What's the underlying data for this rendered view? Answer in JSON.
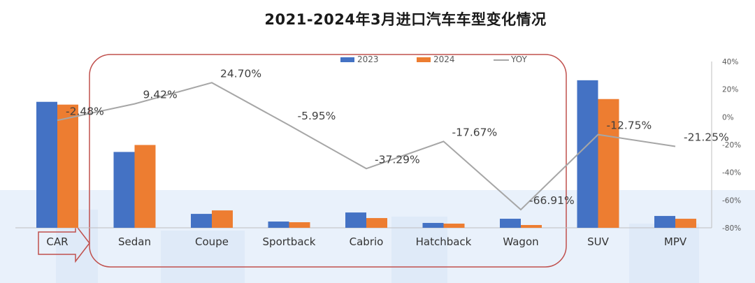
{
  "chart_data": {
    "type": "bar",
    "title": "2021-2024年3月进口汽车车型变化情况",
    "categories": [
      "CAR",
      "Sedan",
      "Coupe",
      "Sportback",
      "Cabrio",
      "Hatchback",
      "Wagon",
      "SUV",
      "MPV"
    ],
    "series": [
      {
        "name": "2023",
        "type": "bar",
        "values": [
          181,
          109,
          20,
          9,
          22,
          7,
          13,
          212,
          17
        ],
        "color": "#4472c4"
      },
      {
        "name": "2024",
        "type": "bar",
        "values": [
          177,
          119,
          25,
          8,
          14,
          6,
          4,
          185,
          13
        ],
        "color": "#ed7d31"
      },
      {
        "name": "YOY",
        "type": "line",
        "axis": "right",
        "values": [
          -2.48,
          9.42,
          24.7,
          -5.95,
          -37.29,
          -17.67,
          -66.91,
          -12.75,
          -21.25
        ],
        "labels": [
          "-2.48%",
          "9.42%",
          "24.70%",
          "-5.95%",
          "-37.29%",
          "-17.67%",
          "-66.91%",
          "-12.75%",
          "-21.25%"
        ],
        "color": "#a6a6a6"
      }
    ],
    "y2_ticks": [
      "40%",
      "20%",
      "0%",
      "-20%",
      "-40%",
      "-60%",
      "-80%"
    ],
    "y2_values": [
      40,
      20,
      0,
      -20,
      -40,
      -60,
      -80
    ],
    "y2lim": [
      -80,
      40
    ],
    "legend": "top-center",
    "grid": false
  }
}
